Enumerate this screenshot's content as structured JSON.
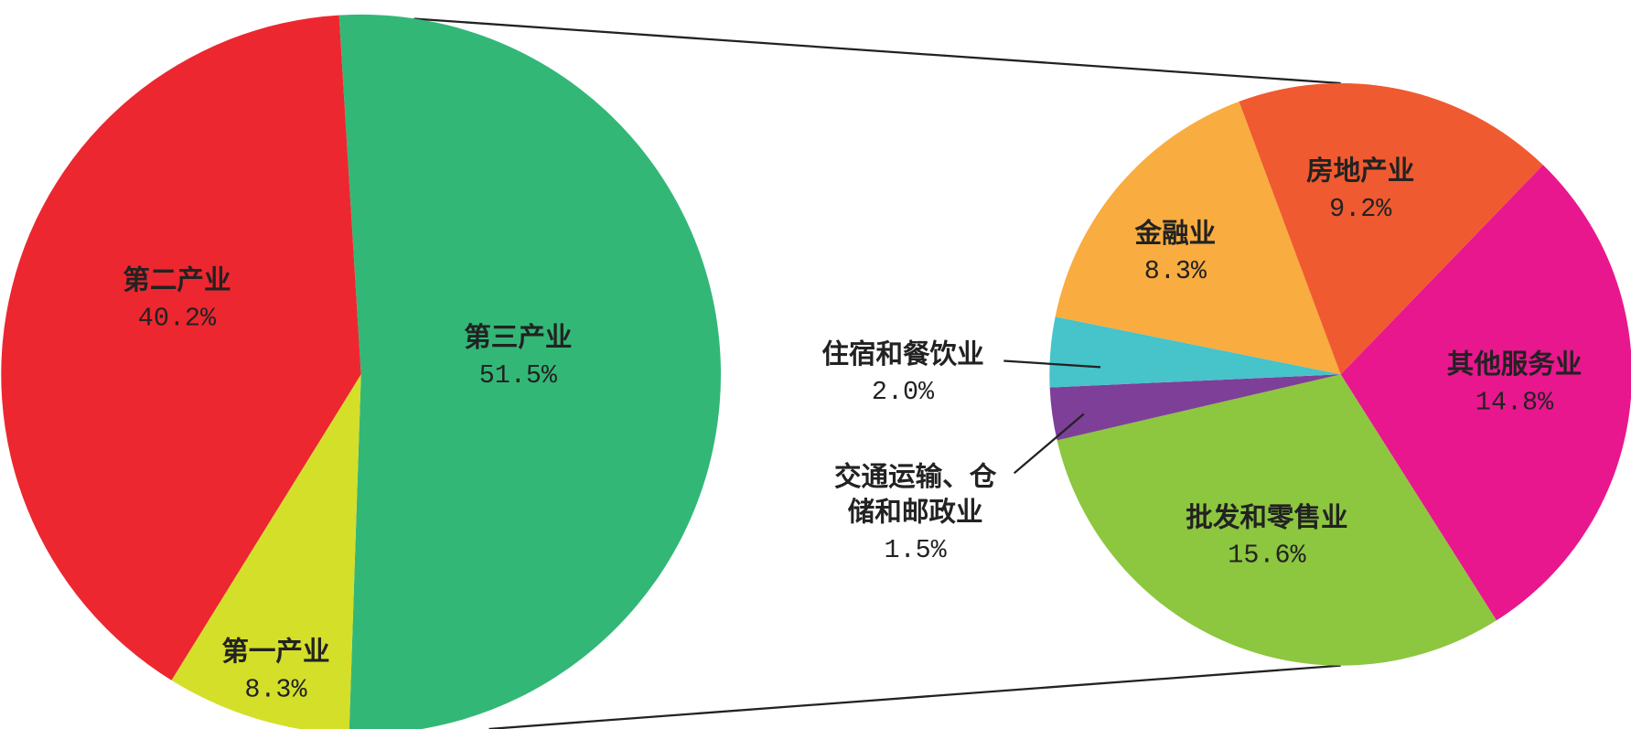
{
  "chart_data": [
    {
      "type": "pie",
      "categories": [
        "第三产业",
        "第一产业",
        "第二产业"
      ],
      "values": [
        51.5,
        8.3,
        40.2
      ],
      "value_labels": [
        "51.5%",
        "8.3%",
        "40.2%"
      ],
      "colors": [
        "#33b777",
        "#d4df2a",
        "#ec2730"
      ]
    },
    {
      "type": "pie",
      "categories": [
        "其他服务业",
        "批发和零售业",
        "交通运输、仓储和邮政业",
        "住宿和餐饮业",
        "金融业",
        "房地产业"
      ],
      "values": [
        14.8,
        15.6,
        1.5,
        2.0,
        8.3,
        9.2
      ],
      "value_labels": [
        "14.8%",
        "15.6%",
        "1.5%",
        "2.0%",
        "8.3%",
        "9.2%"
      ],
      "colors": [
        "#e8178e",
        "#8dc63f",
        "#7e3f98",
        "#47c3ca",
        "#f9ac40",
        "#f05a30"
      ]
    }
  ]
}
